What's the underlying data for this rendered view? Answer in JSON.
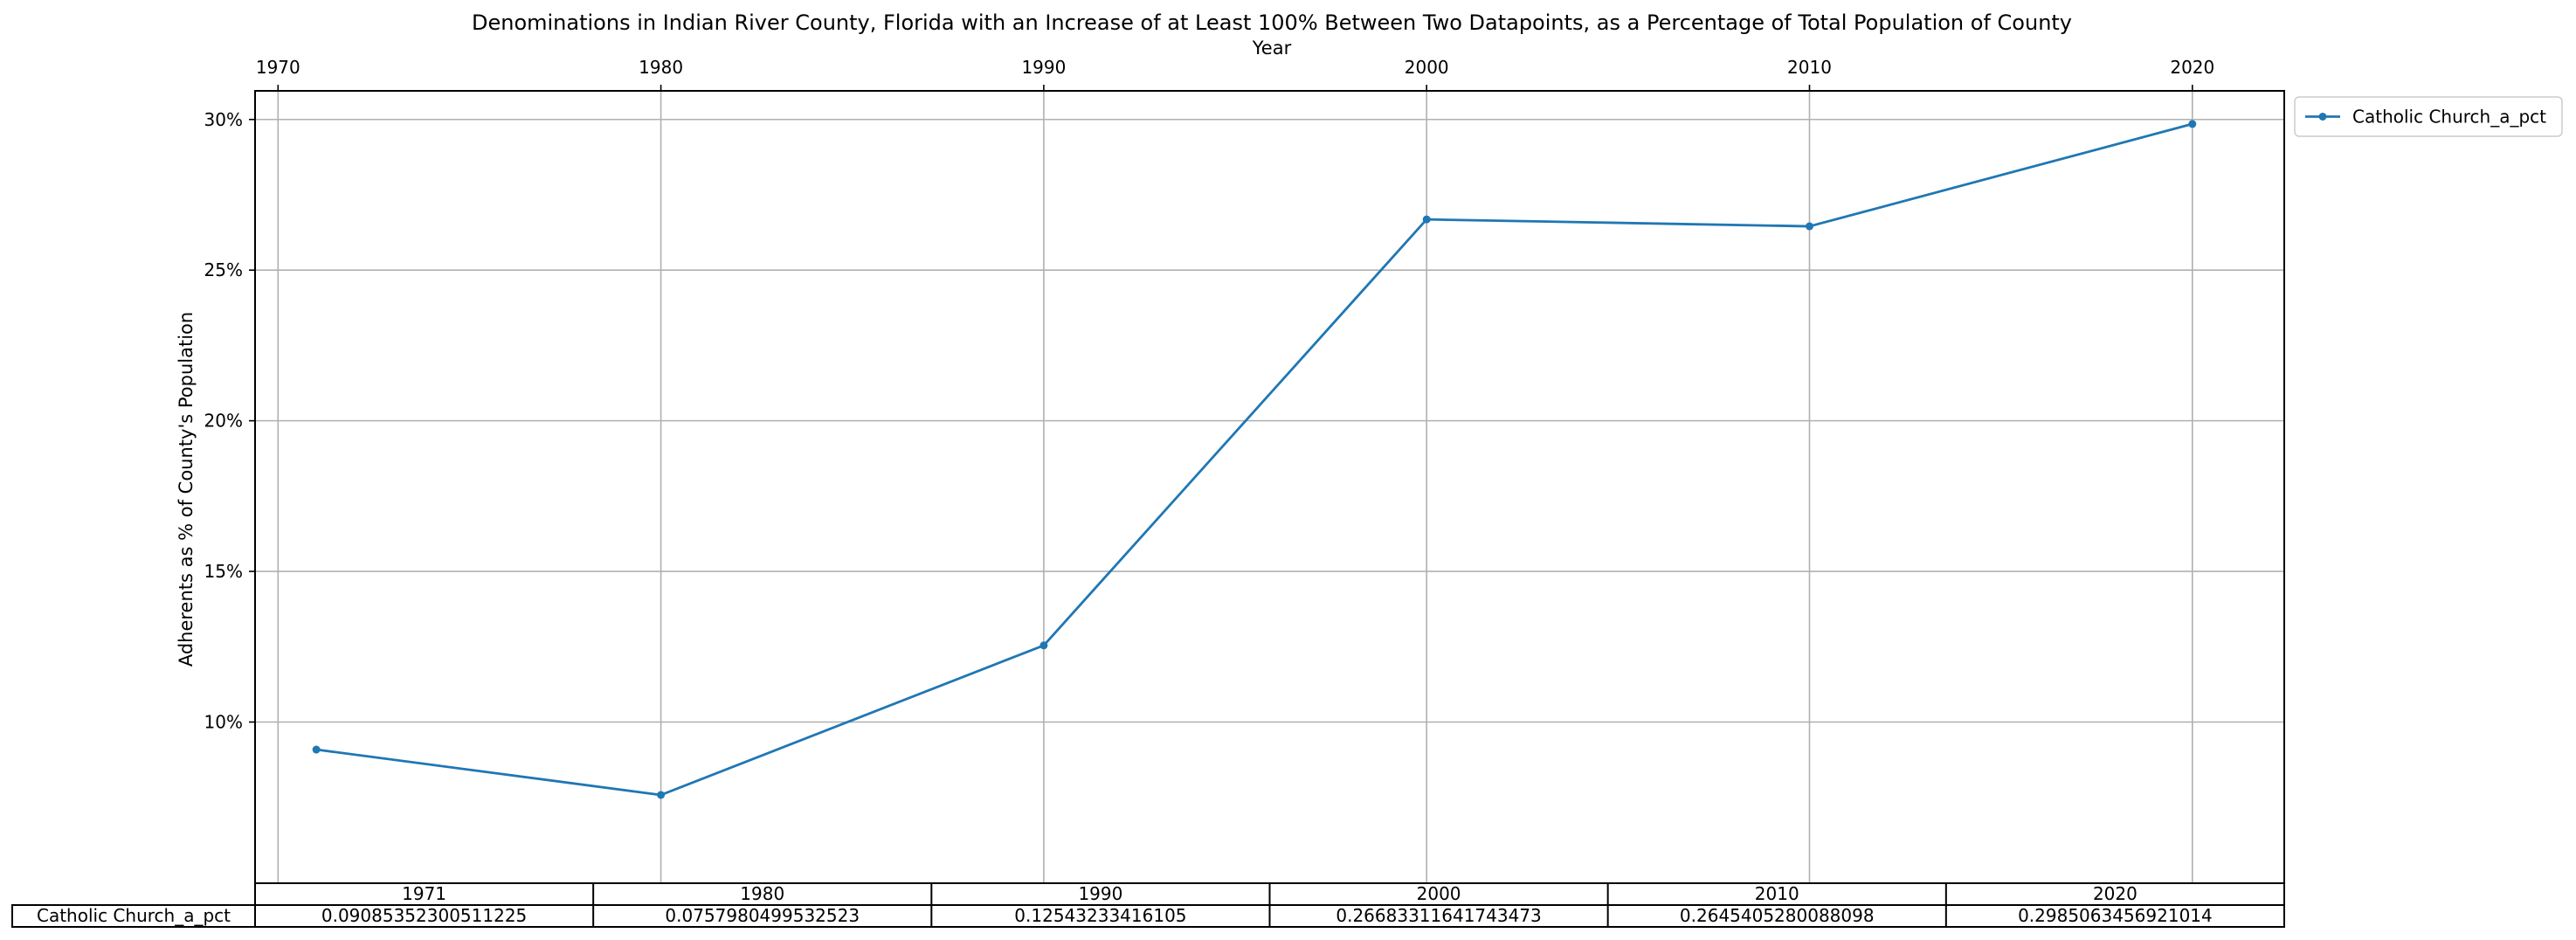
{
  "chart_data": {
    "type": "line",
    "title": "Denominations in Indian River County, Florida with an Increase of at Least 100% Between Two Datapoints, as a Percentage of Total Population of County",
    "xlabel": "Year",
    "ylabel": "Adherents as % of County's Population",
    "x_ticks": [
      1970,
      1980,
      1990,
      2000,
      2010,
      2020
    ],
    "x_tick_labels": [
      "1970",
      "1980",
      "1990",
      "2000",
      "2010",
      "2020"
    ],
    "xlim": [
      1969.4,
      2022.4
    ],
    "y_ticks": [
      0.1,
      0.15,
      0.2,
      0.25,
      0.3
    ],
    "y_tick_labels": [
      "10%",
      "15%",
      "20%",
      "25%",
      "30%"
    ],
    "ylim": [
      0.0465,
      0.3095
    ],
    "grid": true,
    "legend_position": "outside-top-right",
    "color": "#1f77b4",
    "x": [
      1971,
      1980,
      1990,
      2000,
      2010,
      2020
    ],
    "series": [
      {
        "name": "Catholic Church_a_pct",
        "values": [
          0.09085352300511225,
          0.0757980499532523,
          0.12543233416105,
          0.26683311641743473,
          0.2645405280088098,
          0.2985063456921014
        ]
      }
    ],
    "table": {
      "columns": [
        "1971",
        "1980",
        "1990",
        "2000",
        "2010",
        "2020"
      ],
      "row_label": "Catholic Church_a_pct",
      "cells": [
        "0.09085352300511225",
        "0.0757980499532523",
        "0.12543233416105",
        "0.26683311641743473",
        "0.2645405280088098",
        "0.2985063456921014"
      ]
    }
  }
}
